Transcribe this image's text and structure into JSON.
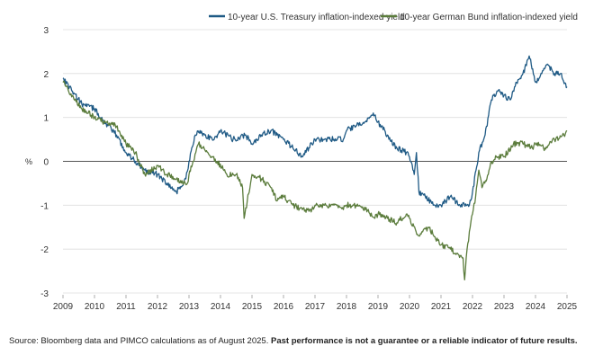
{
  "source": {
    "text": "Source: Bloomberg data and PIMCO calculations as of August 2025.",
    "bold": "Past performance is not a guarantee or a reliable indicator of future results."
  },
  "chart_data": {
    "type": "line",
    "ylabel": "%",
    "ylim": [
      -3,
      3
    ],
    "yticks": [
      -3,
      -2,
      -1,
      0,
      1,
      2,
      3
    ],
    "xlim": [
      2009,
      2025
    ],
    "xticks": [
      2009,
      2010,
      2011,
      2012,
      2013,
      2014,
      2015,
      2016,
      2017,
      2018,
      2019,
      2020,
      2021,
      2022,
      2023,
      2024,
      2025
    ],
    "grid": "horizontal",
    "legend": "top",
    "series": [
      {
        "name": "10-year U.S. Treasury inflation-indexed yield",
        "color": "#1f5a85",
        "x": [
          2009.0,
          2009.3,
          2009.6,
          2010.0,
          2010.3,
          2010.7,
          2011.0,
          2011.3,
          2011.6,
          2012.0,
          2012.3,
          2012.6,
          2012.9,
          2013.0,
          2013.2,
          2013.35,
          2013.5,
          2013.8,
          2014.0,
          2014.4,
          2014.8,
          2015.0,
          2015.3,
          2015.6,
          2015.8,
          2016.0,
          2016.3,
          2016.6,
          2016.9,
          2017.0,
          2017.3,
          2017.6,
          2017.9,
          2018.0,
          2018.3,
          2018.6,
          2018.85,
          2019.0,
          2019.3,
          2019.6,
          2019.9,
          2020.0,
          2020.15,
          2020.22,
          2020.3,
          2020.5,
          2020.8,
          2021.0,
          2021.3,
          2021.6,
          2021.9,
          2022.0,
          2022.2,
          2022.4,
          2022.6,
          2022.8,
          2023.0,
          2023.2,
          2023.4,
          2023.6,
          2023.8,
          2024.0,
          2024.2,
          2024.4,
          2024.6,
          2024.8,
          2025.0
        ],
        "y": [
          1.9,
          1.6,
          1.3,
          1.2,
          0.9,
          0.6,
          0.2,
          0.0,
          -0.2,
          -0.3,
          -0.5,
          -0.7,
          -0.4,
          0.0,
          0.6,
          0.7,
          0.6,
          0.5,
          0.7,
          0.5,
          0.6,
          0.4,
          0.6,
          0.7,
          0.6,
          0.5,
          0.3,
          0.1,
          0.4,
          0.5,
          0.5,
          0.5,
          0.5,
          0.7,
          0.8,
          0.9,
          1.1,
          0.9,
          0.6,
          0.3,
          0.2,
          0.1,
          -0.3,
          0.2,
          -0.7,
          -0.8,
          -1.0,
          -1.0,
          -0.8,
          -1.0,
          -1.0,
          -0.7,
          0.2,
          0.6,
          1.4,
          1.6,
          1.5,
          1.4,
          1.8,
          2.0,
          2.4,
          1.8,
          2.0,
          2.2,
          2.0,
          2.0,
          1.7
        ]
      },
      {
        "name": "10-year German Bund inflation-indexed yield",
        "color": "#5b7c3c",
        "x": [
          2009.0,
          2009.3,
          2009.6,
          2010.0,
          2010.3,
          2010.7,
          2011.0,
          2011.3,
          2011.6,
          2012.0,
          2012.3,
          2012.6,
          2012.8,
          2012.95,
          2013.0,
          2013.15,
          2013.3,
          2013.6,
          2013.9,
          2014.2,
          2014.5,
          2014.7,
          2014.75,
          2014.85,
          2015.0,
          2015.3,
          2015.6,
          2015.8,
          2016.0,
          2016.3,
          2016.6,
          2016.9,
          2017.0,
          2017.3,
          2017.6,
          2017.9,
          2018.0,
          2018.3,
          2018.6,
          2018.9,
          2019.0,
          2019.3,
          2019.6,
          2019.9,
          2020.0,
          2020.3,
          2020.6,
          2020.9,
          2021.0,
          2021.3,
          2021.5,
          2021.7,
          2021.75,
          2021.8,
          2021.9,
          2022.0,
          2022.1,
          2022.2,
          2022.3,
          2022.5,
          2022.6,
          2022.8,
          2023.0,
          2023.3,
          2023.6,
          2023.9,
          2024.0,
          2024.3,
          2024.6,
          2024.9,
          2025.0
        ],
        "y": [
          1.8,
          1.5,
          1.2,
          1.0,
          0.9,
          0.8,
          0.4,
          0.2,
          -0.3,
          -0.1,
          -0.3,
          -0.4,
          -0.5,
          -0.5,
          -0.3,
          0.0,
          0.4,
          0.2,
          0.0,
          -0.3,
          -0.3,
          -0.6,
          -1.3,
          -0.9,
          -0.3,
          -0.4,
          -0.6,
          -0.9,
          -0.8,
          -1.0,
          -1.1,
          -1.1,
          -1.0,
          -1.0,
          -1.0,
          -1.1,
          -1.0,
          -1.0,
          -1.1,
          -1.3,
          -1.2,
          -1.3,
          -1.4,
          -1.2,
          -1.3,
          -1.7,
          -1.5,
          -1.8,
          -1.9,
          -2.0,
          -2.1,
          -2.2,
          -2.7,
          -2.2,
          -1.6,
          -1.2,
          -0.8,
          -0.2,
          -0.6,
          -0.3,
          0.0,
          0.1,
          0.1,
          0.4,
          0.4,
          0.3,
          0.4,
          0.3,
          0.5,
          0.6,
          0.7
        ]
      }
    ]
  }
}
